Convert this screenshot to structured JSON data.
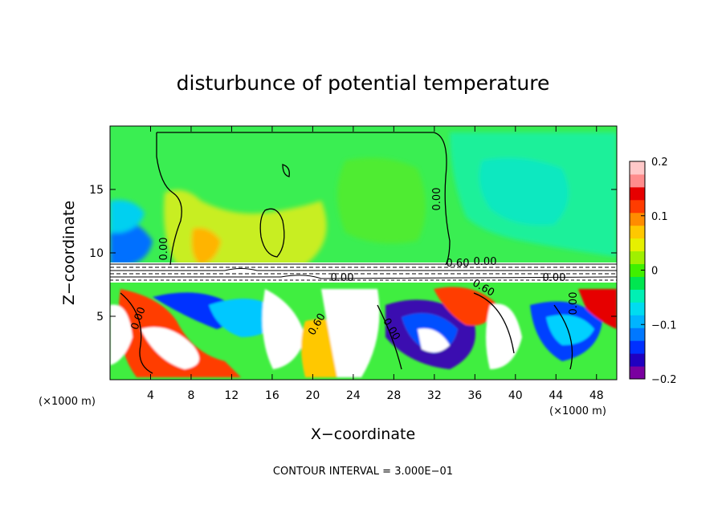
{
  "chart_data": {
    "type": "heatmap",
    "title": "disturbunce of potential temperature",
    "xlabel": "X−coordinate",
    "ylabel": "Z−coordinate",
    "x_unit": "(×1000 m)",
    "x_unit_right": "(×1000 m)",
    "z_unit": "",
    "xlim": [
      0,
      50
    ],
    "ylim": [
      0,
      20
    ],
    "x_ticks": [
      4,
      8,
      12,
      16,
      20,
      24,
      28,
      32,
      36,
      40,
      44,
      48
    ],
    "x_tick_labels": [
      "4",
      "8",
      "12",
      "16",
      "20",
      "24",
      "28",
      "32",
      "36",
      "40",
      "44",
      "48"
    ],
    "y_ticks": [
      5,
      10,
      15
    ],
    "y_tick_labels": [
      "5",
      "10",
      "15"
    ],
    "colorbar": {
      "range": [
        -0.2,
        0.2
      ],
      "ticks": [
        0.2,
        0.1,
        0,
        -0.1,
        -0.2
      ],
      "tick_labels": [
        "0.2",
        "0.1",
        "0",
        "−0.1",
        "−0.2"
      ],
      "colors": [
        "#7a00a0",
        "#2000c0",
        "#0030ff",
        "#0078ff",
        "#00b4ff",
        "#00dcf0",
        "#00f0b4",
        "#00e650",
        "#40f000",
        "#a0f000",
        "#e6f000",
        "#ffc800",
        "#ff8c00",
        "#ff3c00",
        "#e60000",
        "#ff8c8c",
        "#ffc8c8"
      ]
    },
    "contour_labels": [
      "0.00",
      "0.00",
      "0.00",
      "0.60",
      "0.00",
      "0.60",
      "0.00",
      "0.00",
      "0.00",
      "0.00",
      "0.60"
    ],
    "footnote": "CONTOUR INTERVAL = 3.000E−01"
  }
}
